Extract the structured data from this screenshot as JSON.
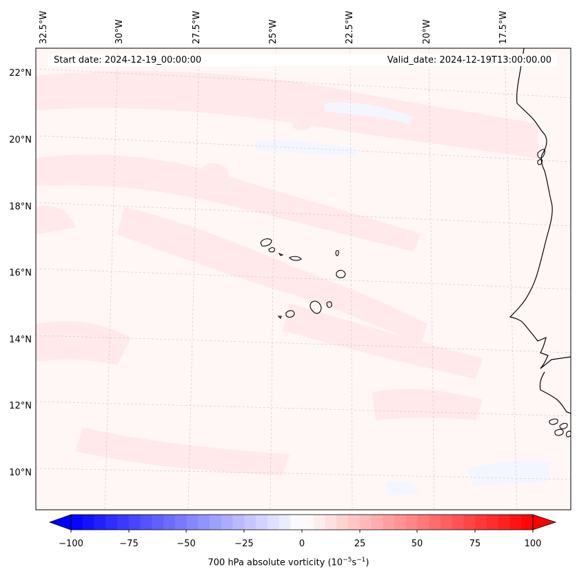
{
  "header": {
    "start_date": "Start date: 2024-12-19_00:00:00",
    "valid_date": "Valid_date: 2024-12-19T13:00:00.00"
  },
  "map": {
    "lon_labels": [
      "32.5°W",
      "30°W",
      "27.5°W",
      "25°W",
      "22.5°W",
      "20°W",
      "17.5°W"
    ],
    "lat_labels": [
      "22°N",
      "20°N",
      "18°N",
      "16°N",
      "14°N",
      "12°N",
      "10°N"
    ],
    "field_colors": {
      "background": "#fff6f6",
      "pink": "#ffe9ea",
      "blue": "#f4f6ff"
    }
  },
  "colorbar": {
    "ticks": [
      "−100",
      "−75",
      "−50",
      "−25",
      "0",
      "25",
      "50",
      "75",
      "100"
    ],
    "label_main": "700 hPa absolute vorticity (10",
    "label_exp1": "−5",
    "label_mid": "s",
    "label_exp2": "−1",
    "label_end": ")",
    "min": -100,
    "max": 100,
    "step": 5,
    "colors": {
      "negative": "#0000ff",
      "zero": "#ffffff",
      "positive": "#ff0000"
    }
  }
}
